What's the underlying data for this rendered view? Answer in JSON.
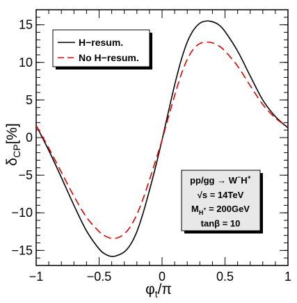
{
  "chart_data": {
    "type": "line",
    "xlabel": "φt/π",
    "ylabel": "δCP[%]",
    "xlim": [
      -1,
      1
    ],
    "ylim": [
      -17,
      17
    ],
    "x_ticks": [
      "−1",
      "−0.5",
      "0",
      "0.5",
      "1"
    ],
    "x_tick_values": [
      -1,
      -0.5,
      0,
      0.5,
      1
    ],
    "y_ticks": [
      "−15",
      "−10",
      "−5",
      "0",
      "5",
      "10",
      "15"
    ],
    "y_tick_values": [
      -15,
      -10,
      -5,
      0,
      5,
      10,
      15
    ],
    "grid": false,
    "legend_position": "top-left",
    "series": [
      {
        "name": "H−resum.",
        "color": "#000000",
        "dash": "solid",
        "x": [
          -1,
          -0.9,
          -0.8,
          -0.7,
          -0.6,
          -0.5,
          -0.45,
          -0.4,
          -0.36,
          -0.3,
          -0.25,
          -0.2,
          -0.15,
          -0.1,
          -0.05,
          0,
          0.05,
          0.1,
          0.15,
          0.2,
          0.25,
          0.3,
          0.35,
          0.4,
          0.45,
          0.5,
          0.6,
          0.7,
          0.8,
          0.9,
          1
        ],
        "y": [
          1.6,
          -1.7,
          -5.3,
          -9.0,
          -12.4,
          -14.8,
          -15.5,
          -15.8,
          -15.7,
          -15.2,
          -14.2,
          -12.5,
          -10.0,
          -7.0,
          -3.8,
          -0.3,
          3.4,
          7.0,
          10.2,
          12.7,
          14.3,
          15.2,
          15.5,
          15.4,
          15.0,
          14.1,
          11.5,
          8.2,
          5.0,
          2.8,
          1.3
        ]
      },
      {
        "name": "No H−resum.",
        "color": "#dd0000",
        "dash": "dashed",
        "x": [
          -1,
          -0.9,
          -0.8,
          -0.7,
          -0.6,
          -0.5,
          -0.45,
          -0.4,
          -0.35,
          -0.3,
          -0.25,
          -0.2,
          -0.15,
          -0.1,
          -0.05,
          0,
          0.05,
          0.1,
          0.15,
          0.2,
          0.25,
          0.3,
          0.35,
          0.4,
          0.45,
          0.5,
          0.6,
          0.7,
          0.8,
          0.9,
          1
        ],
        "y": [
          1.6,
          -1.4,
          -4.6,
          -7.8,
          -10.6,
          -12.5,
          -13.1,
          -13.4,
          -13.3,
          -12.8,
          -11.8,
          -10.2,
          -8.1,
          -5.6,
          -3.0,
          -0.3,
          2.7,
          5.6,
          8.3,
          10.4,
          11.8,
          12.5,
          12.7,
          12.6,
          12.2,
          11.5,
          9.5,
          6.9,
          4.4,
          2.6,
          1.4
        ]
      }
    ],
    "annotation_lines": [
      "pp/gg → W−H+",
      "√s = 14TeV",
      "MH+ = 200GeV",
      "tanβ = 10"
    ]
  }
}
